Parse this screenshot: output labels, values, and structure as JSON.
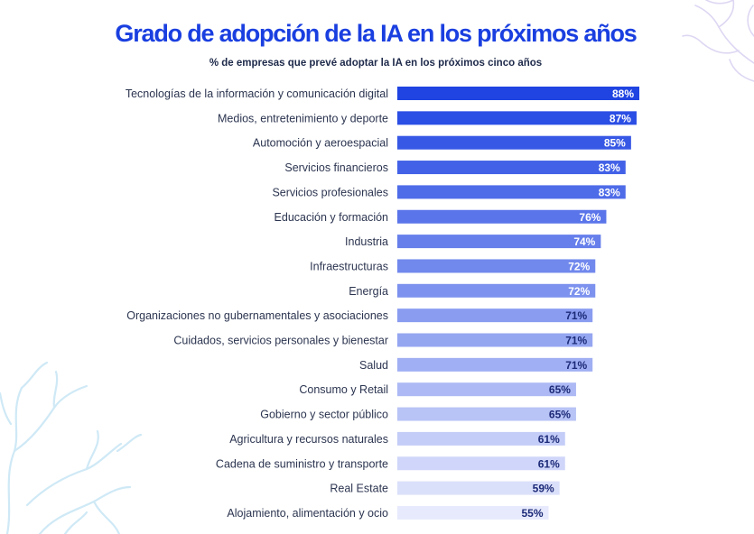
{
  "chart_data": {
    "type": "bar",
    "orientation": "horizontal",
    "title": "Grado de adopción de la IA en los próximos años",
    "subtitle": "% de empresas que prevé adoptar la IA en los próximos cinco años",
    "categories": [
      "Tecnologías de la información y comunicación digital",
      "Medios, entretenimiento y deporte",
      "Automoción y aeroespacial",
      "Servicios financieros",
      "Servicios profesionales",
      "Educación y formación",
      "Industria",
      "Infraestructuras",
      "Energía",
      "Organizaciones no gubernamentales y asociaciones",
      "Cuidados, servicios personales y bienestar",
      "Salud",
      "Consumo y Retail",
      "Gobierno y sector público",
      "Agricultura y recursos naturales",
      "Cadena de suministro y transporte",
      "Real Estate",
      "Alojamiento, alimentación y ocio"
    ],
    "values": [
      88,
      87,
      85,
      83,
      83,
      76,
      74,
      72,
      72,
      71,
      71,
      71,
      65,
      65,
      61,
      61,
      59,
      55
    ],
    "value_labels": [
      "88%",
      "87%",
      "85%",
      "83%",
      "83%",
      "76%",
      "74%",
      "72%",
      "72%",
      "71%",
      "71%",
      "71%",
      "65%",
      "65%",
      "61%",
      "61%",
      "59%",
      "55%"
    ],
    "unit": "%",
    "xlim": [
      0,
      100
    ],
    "grid": false,
    "legend": "none"
  },
  "colors": {
    "title": "#1a3fe0",
    "bar_darkest": "#1f44e2",
    "bar_lightest": "#e7eafc",
    "label_light": "#ffffff",
    "label_dark": "#1c2a78",
    "coral_left": "#cfe9f6",
    "coral_right": "#ded7f3"
  },
  "decorations": [
    "coral-left-decoration",
    "coral-right-decoration"
  ]
}
